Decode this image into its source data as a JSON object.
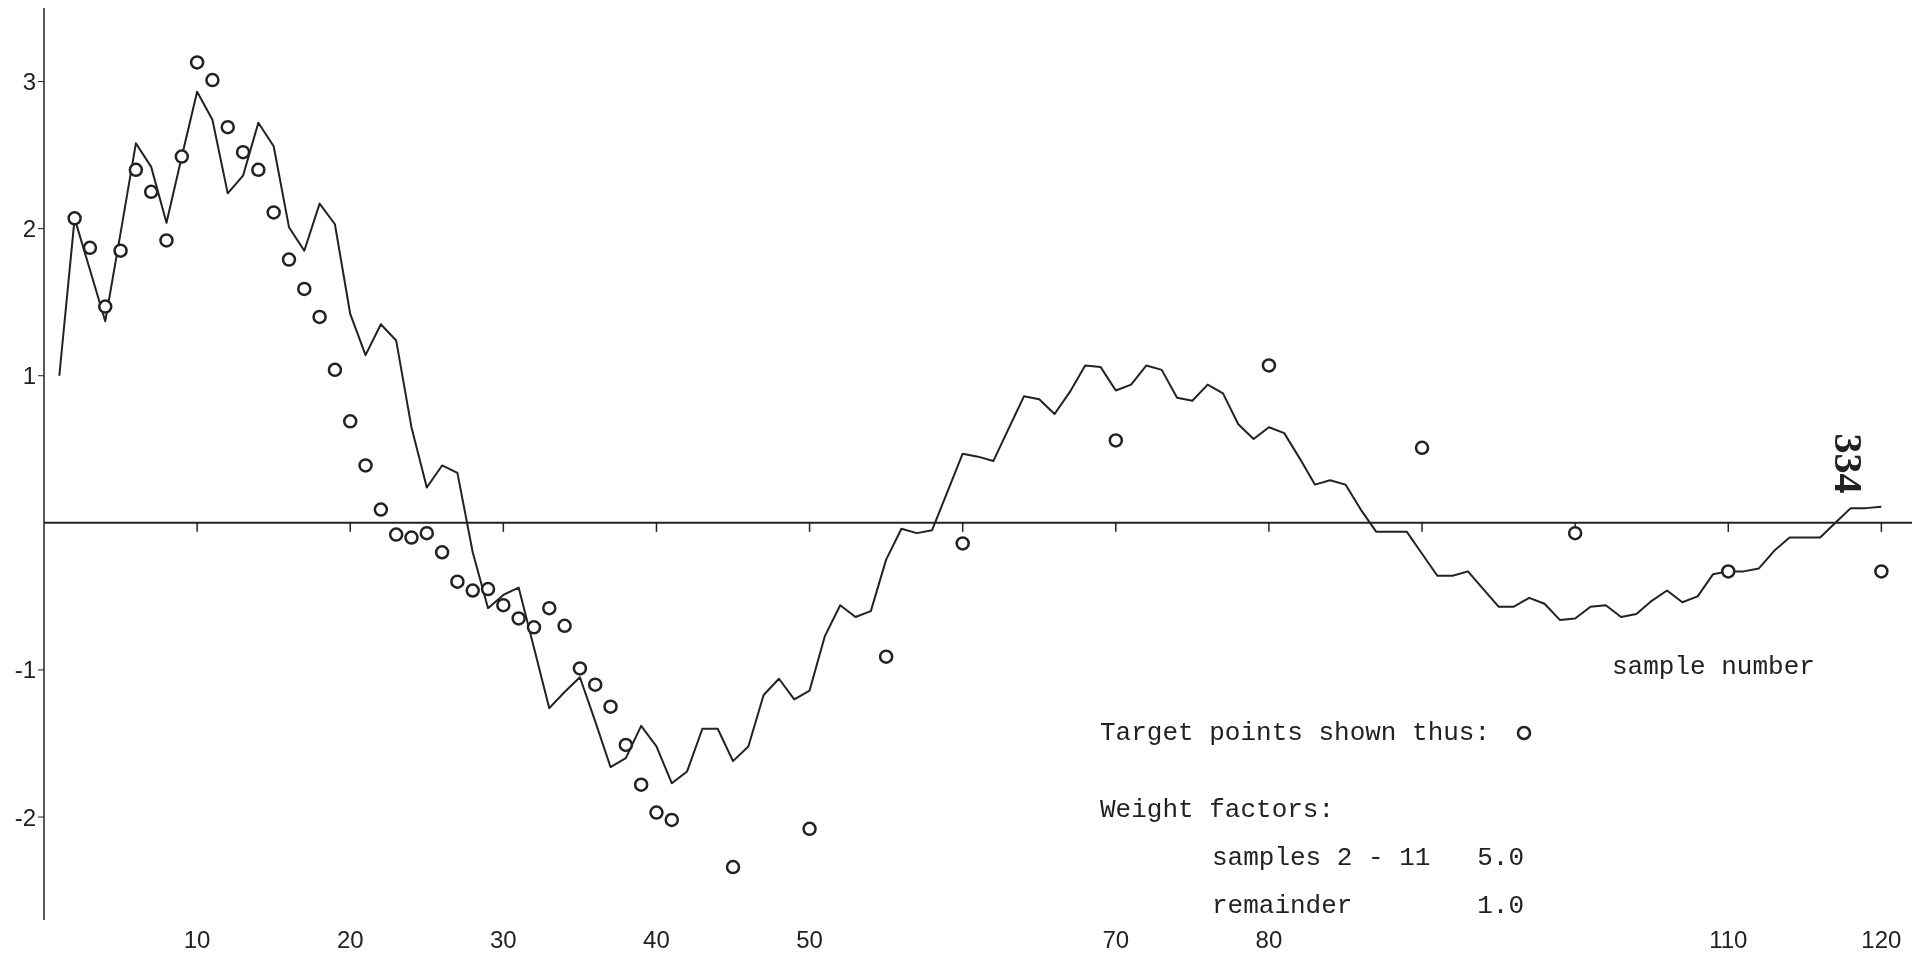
{
  "chart_data": {
    "type": "line",
    "xlabel": "sample number",
    "xlim": [
      0,
      122
    ],
    "ylim": [
      -2.7,
      3.5
    ],
    "xticks": [
      10,
      20,
      30,
      40,
      50,
      {
        "value": 60,
        "label": null
      },
      70,
      80,
      {
        "value": 90,
        "label": null
      },
      {
        "value": 100,
        "label": null
      },
      110,
      120
    ],
    "yticks": [
      -2,
      -1,
      1,
      2,
      3
    ],
    "legend": "bottom right",
    "series": [
      {
        "type": "line",
        "color": "#222222",
        "marker": "none",
        "x": [
          1,
          2,
          3,
          4,
          5,
          6,
          7,
          8,
          9,
          10,
          11,
          12,
          13,
          14,
          15,
          16,
          17,
          18,
          19,
          20,
          21,
          22,
          23,
          24,
          25,
          26,
          27,
          28,
          29,
          30,
          31,
          32,
          33,
          34,
          35,
          36,
          37,
          38,
          39,
          40,
          41,
          42,
          43,
          44,
          45,
          46,
          47,
          48,
          49,
          50,
          51,
          52,
          53,
          54,
          55,
          56,
          57,
          58,
          59,
          60,
          61,
          62,
          63,
          64,
          65,
          66,
          67,
          68,
          69,
          70,
          71,
          72,
          73,
          74,
          75,
          76,
          77,
          78,
          79,
          80,
          81,
          82,
          83,
          84,
          85,
          86,
          87,
          88,
          89,
          90,
          91,
          92,
          93,
          94,
          95,
          96,
          97,
          98,
          99,
          100,
          101,
          102,
          103,
          104,
          105,
          106,
          107,
          108,
          109,
          110,
          111,
          112,
          113,
          114,
          115,
          116,
          117,
          118,
          119,
          120
        ],
        "values": [
          1.0,
          2.07,
          1.72,
          1.37,
          1.97,
          2.58,
          2.42,
          2.04,
          2.49,
          2.93,
          2.74,
          2.24,
          2.36,
          2.72,
          2.56,
          2.01,
          1.85,
          2.17,
          2.03,
          1.42,
          1.14,
          1.35,
          1.24,
          0.65,
          0.24,
          0.39,
          0.34,
          -0.2,
          -0.58,
          -0.49,
          -0.44,
          -0.85,
          -1.26,
          -1.15,
          -1.05,
          -1.35,
          -1.66,
          -1.6,
          -1.38,
          -1.52,
          -1.77,
          -1.69,
          -1.4,
          -1.4,
          -1.62,
          -1.52,
          -1.17,
          -1.06,
          -1.2,
          -1.14,
          -0.77,
          -0.56,
          -0.64,
          -0.6,
          -0.25,
          -0.04,
          -0.07,
          -0.05,
          0.21,
          0.47,
          0.45,
          0.42,
          0.64,
          0.86,
          0.84,
          0.74,
          0.89,
          1.07,
          1.06,
          0.9,
          0.94,
          1.07,
          1.04,
          0.85,
          0.83,
          0.94,
          0.88,
          0.67,
          0.57,
          0.65,
          0.61,
          0.44,
          0.26,
          0.29,
          0.26,
          0.09,
          -0.06,
          -0.06,
          -0.06,
          -0.21,
          -0.36,
          -0.36,
          -0.33,
          -0.45,
          -0.57,
          -0.57,
          -0.51,
          -0.55,
          -0.66,
          -0.65,
          -0.57,
          -0.56,
          -0.64,
          -0.62,
          -0.53,
          -0.46,
          -0.54,
          -0.5,
          -0.35,
          -0.33,
          -0.33,
          -0.31,
          -0.19,
          -0.1,
          -0.1,
          -0.1,
          0,
          0.1,
          0.1,
          0.11
        ]
      },
      {
        "type": "scatter",
        "name": "Target points shown thus:",
        "color": "#222222",
        "marker": "circle",
        "x": [
          2,
          3,
          4,
          5,
          6,
          7,
          8,
          9,
          10,
          11,
          12,
          13,
          14,
          15,
          16,
          17,
          18,
          19,
          20,
          21,
          22,
          23,
          24,
          25,
          26,
          27,
          28,
          29,
          30,
          31,
          32,
          33,
          34,
          35,
          36,
          37,
          38,
          39,
          40,
          41,
          45,
          50,
          55,
          60,
          70,
          80,
          90,
          100,
          110,
          120
        ],
        "values": [
          2.07,
          1.87,
          1.47,
          1.85,
          2.4,
          2.25,
          1.92,
          2.49,
          3.13,
          3.01,
          2.69,
          2.52,
          2.4,
          2.11,
          1.79,
          1.59,
          1.4,
          1.04,
          0.69,
          0.39,
          0.09,
          -0.08,
          -0.1,
          -0.07,
          -0.2,
          -0.4,
          -0.46,
          -0.45,
          -0.56,
          -0.65,
          -0.71,
          -0.58,
          -0.7,
          -0.99,
          -1.1,
          -1.25,
          -1.51,
          -1.78,
          -1.97,
          -2.02,
          -2.34,
          -2.08,
          -0.91,
          -0.14,
          0.56,
          1.07,
          0.51,
          -0.07,
          -0.33,
          -0.33
        ]
      }
    ],
    "annotations": [
      "Weight factors:",
      "samples 2 - 11   5.0",
      "remainder        1.0",
      "334"
    ]
  }
}
